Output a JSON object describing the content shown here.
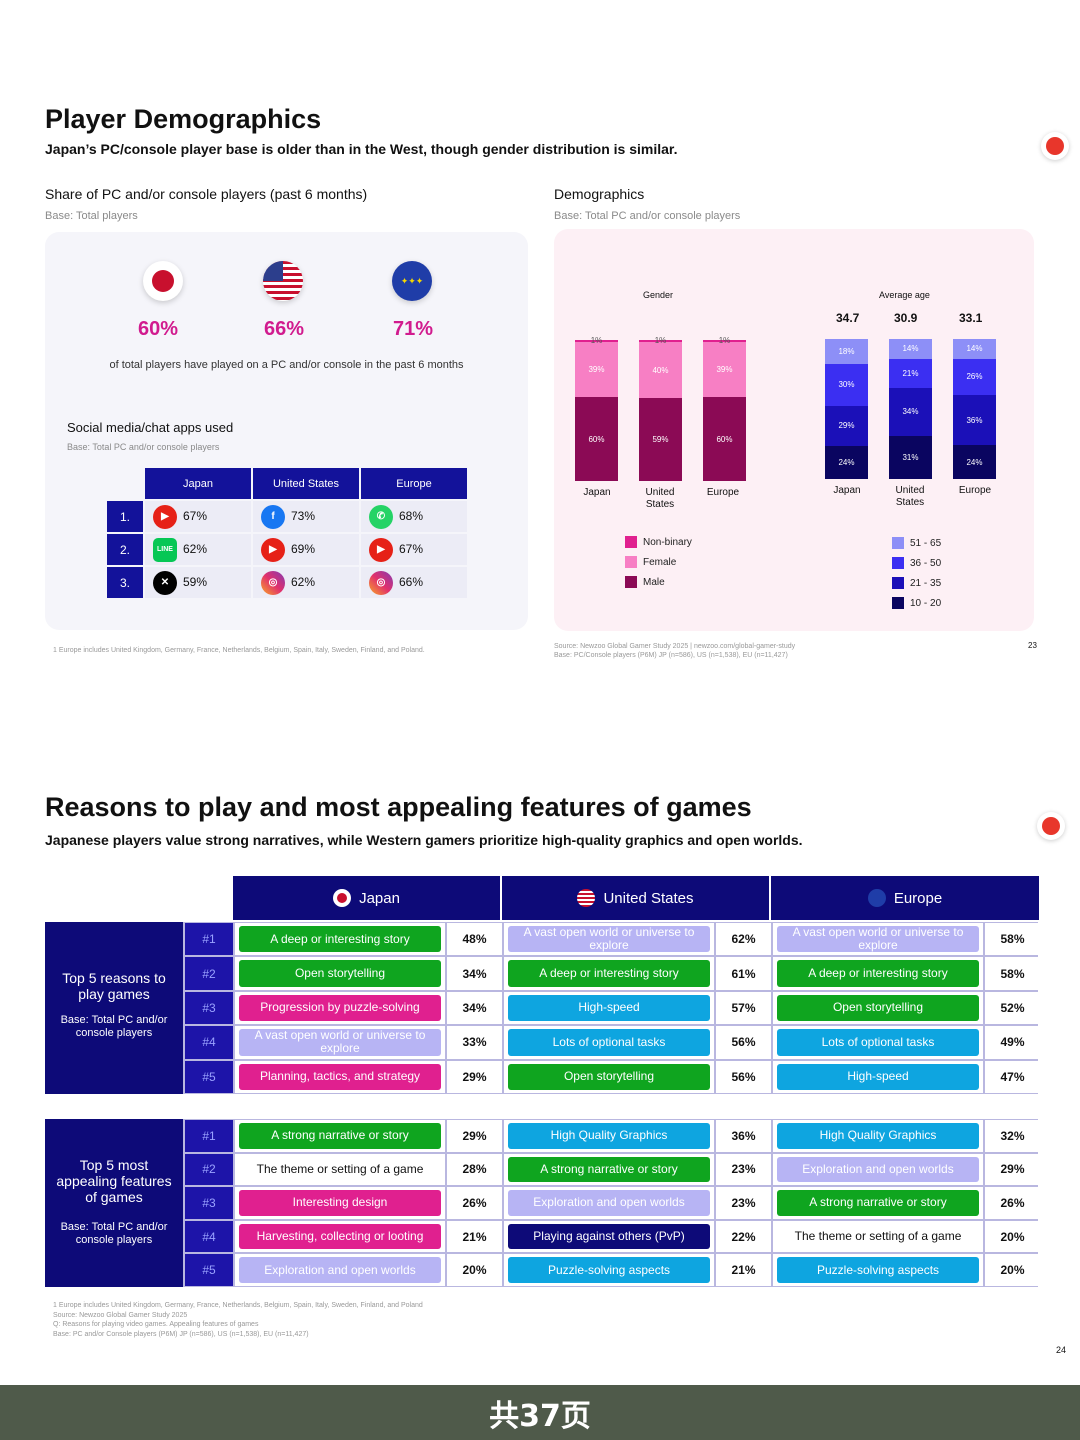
{
  "page1": {
    "title": "Player Demographics",
    "subtitle": "Japan’s PC/console player base is older than in the West, though gender distribution is similar.",
    "share": {
      "heading": "Share of PC and/or console players (past 6 months)",
      "base": "Base: Total players",
      "items": [
        {
          "flag": "japan",
          "value": "60%"
        },
        {
          "flag": "us",
          "value": "66%"
        },
        {
          "flag": "eu",
          "value": "71%"
        }
      ],
      "caption": "of total players have played on a PC and/or console in the past 6 months"
    },
    "social": {
      "heading": "Social media/chat apps used",
      "base": "Base: Total PC and/or console players",
      "columns": [
        "Japan",
        "United States",
        "Europe"
      ],
      "ranks": [
        "1.",
        "2.",
        "3."
      ],
      "rows": [
        [
          {
            "icon": "youtube-icon",
            "v": "67%"
          },
          {
            "icon": "facebook-icon",
            "v": "73%"
          },
          {
            "icon": "whatsapp-icon",
            "v": "68%"
          }
        ],
        [
          {
            "icon": "line-icon",
            "v": "62%"
          },
          {
            "icon": "youtube-icon",
            "v": "69%"
          },
          {
            "icon": "youtube-icon",
            "v": "67%"
          }
        ],
        [
          {
            "icon": "x-icon",
            "v": "59%"
          },
          {
            "icon": "instagram-icon",
            "v": "62%"
          },
          {
            "icon": "instagram-icon",
            "v": "66%"
          }
        ]
      ]
    },
    "footnote1": "1 Europe includes United Kingdom, Germany, France, Netherlands, Belgium, Spain, Italy, Sweden, Finland, and Poland.",
    "demo": {
      "heading": "Demographics",
      "base": "Base: Total PC and/or console players",
      "gender_title": "Gender",
      "age_title": "Average age",
      "gender_legend": [
        "Non-binary",
        "Female",
        "Male"
      ],
      "age_legend": [
        "51 - 65",
        "36 - 50",
        "21 - 35",
        "10 - 20"
      ],
      "colors": {
        "nonbinary": "#e0208f",
        "female": "#f77fc4",
        "male": "#8b0a55",
        "a51": "#8d8ff7",
        "a36": "#3b2ff2",
        "a21": "#1b10b8",
        "a10": "#0a0560"
      }
    },
    "source": "Source: Newzoo Global Gamer Study 2025 | newzoo.com/global-gamer-study",
    "source2": "Base: PC/Console players (P6M) JP (n=586), US (n=1,538), EU (n=11,427)",
    "page_number": "23"
  },
  "chart_data": [
    {
      "type": "bar",
      "title": "Gender",
      "categories": [
        "Japan",
        "United States",
        "Europe"
      ],
      "series": [
        {
          "name": "Male",
          "values": [
            60,
            59,
            60
          ]
        },
        {
          "name": "Female",
          "values": [
            39,
            40,
            39
          ]
        },
        {
          "name": "Non-binary",
          "values": [
            1,
            1,
            1
          ]
        }
      ],
      "labels": {
        "male": [
          "60%",
          "59%",
          "60%"
        ],
        "female": [
          "39%",
          "40%",
          "39%"
        ],
        "nonbinary": [
          "1%",
          "1%",
          "1%"
        ]
      }
    },
    {
      "type": "bar",
      "title": "Average age",
      "categories": [
        "Japan",
        "United States",
        "Europe"
      ],
      "averages": [
        "34.7",
        "30.9",
        "33.1"
      ],
      "series": [
        {
          "name": "10 - 20",
          "values": [
            24,
            31,
            24
          ]
        },
        {
          "name": "21 - 35",
          "values": [
            29,
            34,
            36
          ]
        },
        {
          "name": "36 - 50",
          "values": [
            30,
            21,
            26
          ]
        },
        {
          "name": "51 - 65",
          "values": [
            18,
            14,
            14
          ]
        }
      ]
    }
  ],
  "page2": {
    "title": "Reasons to play and most appealing features of games",
    "subtitle": "Japanese players value strong narratives, while Western gamers prioritize high-quality graphics and open worlds.",
    "headers": [
      "Japan",
      "United States",
      "Europe"
    ],
    "ranks": [
      "#1",
      "#2",
      "#3",
      "#4",
      "#5"
    ],
    "reasons": {
      "label": "Top 5 reasons to play games",
      "base": "Base: Total PC and/or console players",
      "rows": [
        [
          [
            "A deep or interesting story",
            "48%",
            "#0fa51f"
          ],
          [
            "A vast open world or universe to explore",
            "62%",
            "#b7b4f4"
          ],
          [
            "A vast open world or universe to explore",
            "58%",
            "#b7b4f4"
          ]
        ],
        [
          [
            "Open storytelling",
            "34%",
            "#0fa51f"
          ],
          [
            "A deep or interesting story",
            "61%",
            "#0fa51f"
          ],
          [
            "A deep or interesting story",
            "58%",
            "#0fa51f"
          ]
        ],
        [
          [
            "Progression by puzzle-solving",
            "34%",
            "#e0208f"
          ],
          [
            "High-speed",
            "57%",
            "#0ea5e0"
          ],
          [
            "Open storytelling",
            "52%",
            "#0fa51f"
          ]
        ],
        [
          [
            "A vast open world or universe to explore",
            "33%",
            "#b7b4f4"
          ],
          [
            "Lots of optional tasks",
            "56%",
            "#0ea5e0"
          ],
          [
            "Lots of optional tasks",
            "49%",
            "#0ea5e0"
          ]
        ],
        [
          [
            "Planning, tactics, and strategy",
            "29%",
            "#e0208f"
          ],
          [
            "Open storytelling",
            "56%",
            "#0fa51f"
          ],
          [
            "High-speed",
            "47%",
            "#0ea5e0"
          ]
        ]
      ]
    },
    "features": {
      "label": "Top 5 most appealing features of games",
      "base": "Base: Total PC and/or console players",
      "rows": [
        [
          [
            "A strong narrative or story",
            "29%",
            "#0fa51f"
          ],
          [
            "High Quality Graphics",
            "36%",
            "#0ea5e0"
          ],
          [
            "High Quality Graphics",
            "32%",
            "#0ea5e0"
          ]
        ],
        [
          [
            "The theme or setting of a game",
            "28%",
            "#ffffff"
          ],
          [
            "A strong narrative or story",
            "23%",
            "#0fa51f"
          ],
          [
            "Exploration and open worlds",
            "29%",
            "#b7b4f4"
          ]
        ],
        [
          [
            "Interesting design",
            "26%",
            "#e0208f"
          ],
          [
            "Exploration and open worlds",
            "23%",
            "#b7b4f4"
          ],
          [
            "A strong narrative or story",
            "26%",
            "#0fa51f"
          ]
        ],
        [
          [
            "Harvesting, collecting or looting",
            "21%",
            "#e0208f"
          ],
          [
            "Playing against others (PvP)",
            "22%",
            "#0d0a78"
          ],
          [
            "The theme or setting of a game",
            "20%",
            "#ffffff"
          ]
        ],
        [
          [
            "Exploration and open worlds",
            "20%",
            "#b7b4f4"
          ],
          [
            "Puzzle-solving aspects",
            "21%",
            "#0ea5e0"
          ],
          [
            "Puzzle-solving aspects",
            "20%",
            "#0ea5e0"
          ]
        ]
      ]
    },
    "footnotes": [
      "1 Europe includes United Kingdom, Germany, France, Netherlands, Belgium, Spain, Italy, Sweden, Finland, and Poland",
      "Source: Newzoo Global Gamer Study 2025",
      "Q: Reasons for playing video games. Appealing features of games",
      "Base: PC and/or Console players (P6M) JP (n=586), US (n=1,538), EU (n=11,427)"
    ],
    "page_number": "24"
  },
  "bottom_bar": "共37页"
}
